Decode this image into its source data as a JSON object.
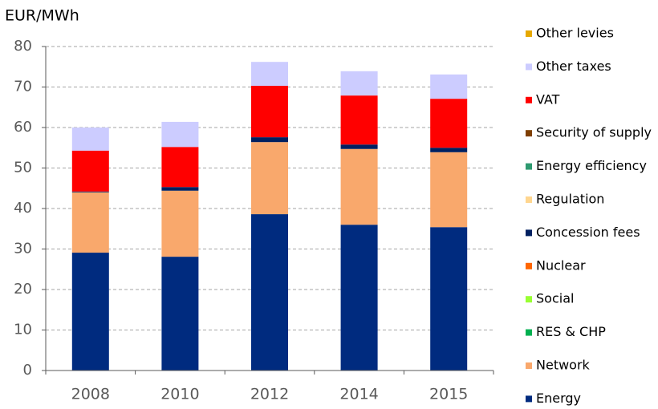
{
  "chart_data": {
    "type": "stacked_bar",
    "y_axis_label": "EUR/MWh",
    "categories": [
      "2008",
      "2010",
      "2012",
      "2014",
      "2015"
    ],
    "ylim": [
      0,
      80
    ],
    "yticks": [
      0,
      10,
      20,
      30,
      40,
      50,
      60,
      70,
      80
    ],
    "grid": true,
    "series": [
      {
        "name": "Energy",
        "color": "#002b7f",
        "values": [
          29.1,
          28.1,
          38.6,
          36.0,
          35.4
        ]
      },
      {
        "name": "Network",
        "color": "#f9a86c",
        "values": [
          14.9,
          16.3,
          17.8,
          18.7,
          18.5
        ]
      },
      {
        "name": "RES & CHP",
        "color": "#00b050",
        "values": [
          0,
          0,
          0,
          0,
          0
        ]
      },
      {
        "name": "Social",
        "color": "#99ff33",
        "values": [
          0,
          0,
          0,
          0,
          0
        ]
      },
      {
        "name": "Nuclear",
        "color": "#ff6600",
        "values": [
          0,
          0,
          0,
          0,
          0
        ]
      },
      {
        "name": "Concession fees",
        "color": "#002060",
        "values": [
          0.2,
          0.9,
          1.2,
          1.1,
          1.1
        ]
      },
      {
        "name": "Regulation",
        "color": "#ffd68f",
        "values": [
          0,
          0,
          0,
          0,
          0
        ]
      },
      {
        "name": "Energy efficiency",
        "color": "#2e9a70",
        "values": [
          0,
          0,
          0,
          0,
          0
        ]
      },
      {
        "name": "Security of supply",
        "color": "#7f3f00",
        "values": [
          0,
          0,
          0,
          0,
          0
        ]
      },
      {
        "name": "VAT",
        "color": "#ff0000",
        "values": [
          10.1,
          9.9,
          12.7,
          12.1,
          12.1
        ]
      },
      {
        "name": "Other taxes",
        "color": "#ccccff",
        "values": [
          5.7,
          6.2,
          5.9,
          6.0,
          6.0
        ]
      },
      {
        "name": "Other levies",
        "color": "#e6a800",
        "values": [
          0,
          0,
          0,
          0,
          0
        ]
      }
    ]
  }
}
